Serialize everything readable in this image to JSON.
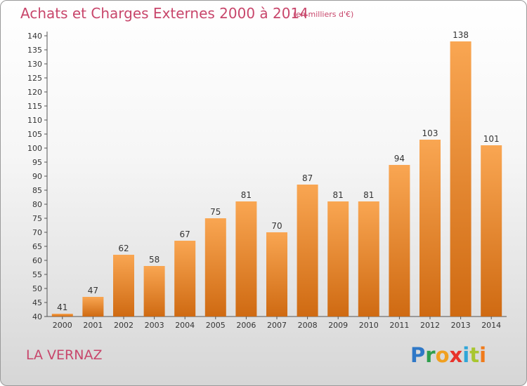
{
  "header": {
    "title": "Achats et Charges Externes 2000 à 2014",
    "subtitle": "(en milliers d'€)"
  },
  "footer": {
    "commune": "LA VERNAZ",
    "logo_letters": [
      {
        "char": "P",
        "color": "#2f78c7"
      },
      {
        "char": "r",
        "color": "#2f9e4c"
      },
      {
        "char": "o",
        "color": "#f0a020"
      },
      {
        "char": "x",
        "color": "#e8332b"
      },
      {
        "char": "i",
        "color": "#2fa6d8"
      },
      {
        "char": "t",
        "color": "#a8c630"
      },
      {
        "char": "i",
        "color": "#f07a1a"
      }
    ]
  },
  "chart_data": {
    "type": "bar",
    "categories": [
      "2000",
      "2001",
      "2002",
      "2003",
      "2004",
      "2005",
      "2006",
      "2007",
      "2008",
      "2009",
      "2010",
      "2011",
      "2012",
      "2013",
      "2014"
    ],
    "values": [
      41,
      47,
      62,
      58,
      67,
      75,
      81,
      70,
      87,
      81,
      81,
      94,
      103,
      138,
      101
    ],
    "title": "Achats et Charges Externes 2000 à 2014",
    "xlabel": "",
    "ylabel": "",
    "ylim": [
      40,
      140
    ],
    "yticks": [
      40,
      45,
      50,
      55,
      60,
      65,
      70,
      75,
      80,
      85,
      90,
      95,
      100,
      105,
      110,
      115,
      120,
      125,
      130,
      135,
      140
    ],
    "grid": false,
    "legend": "none",
    "colors": {
      "bar_top": "#f9a652",
      "bar_bottom": "#cf6a12",
      "axis": "#555555",
      "label": "#333333"
    }
  }
}
